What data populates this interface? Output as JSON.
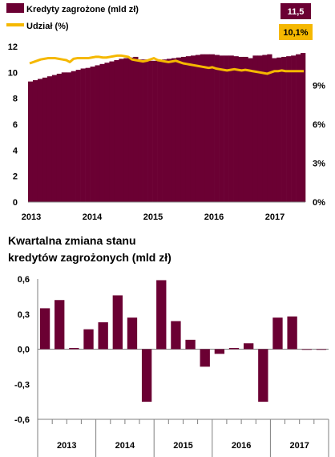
{
  "colors": {
    "bar": "#6B0033",
    "line": "#F5B800",
    "grid": "#A6A6A6",
    "badge_text": "#FFFFFF"
  },
  "chart_data": [
    {
      "type": "bar+line",
      "legend": [
        {
          "label": "Kredyty zagrożone (mld zł)",
          "badge": "11,5"
        },
        {
          "label": "Udział (%)",
          "badge": "10,1%"
        }
      ],
      "legend_placement": "top",
      "x_tick_labels": [
        "2013",
        "2014",
        "2015",
        "2016",
        "2017"
      ],
      "y_left": {
        "range": [
          0,
          12
        ],
        "tick_labels": [
          "0",
          "2",
          "4",
          "6",
          "8",
          "10",
          "12"
        ]
      },
      "y_right": {
        "range": [
          0,
          12
        ],
        "tick_labels": [
          "0%",
          "3%",
          "6%",
          "9%"
        ]
      },
      "grid": false,
      "series": [
        {
          "name": "Kredyty zagrożone (mld zł)",
          "type": "bar",
          "axis": "left",
          "values": [
            9.3,
            9.4,
            9.5,
            9.6,
            9.7,
            9.8,
            9.9,
            10.0,
            10.0,
            10.1,
            10.2,
            10.3,
            10.35,
            10.45,
            10.55,
            10.65,
            10.75,
            10.85,
            10.95,
            11.05,
            11.1,
            11.15,
            11.2,
            11.0,
            11.0,
            10.9,
            10.9,
            10.95,
            11.0,
            11.05,
            11.1,
            11.15,
            11.2,
            11.25,
            11.3,
            11.35,
            11.4,
            11.4,
            11.4,
            11.35,
            11.3,
            11.3,
            11.3,
            11.25,
            11.2,
            11.2,
            11.1,
            11.3,
            11.3,
            11.35,
            11.4,
            11.1,
            11.15,
            11.2,
            11.25,
            11.3,
            11.4,
            11.5
          ]
        },
        {
          "name": "Udział (%)",
          "type": "line",
          "axis": "right",
          "values": [
            10.7,
            10.8,
            10.9,
            11.0,
            11.05,
            11.1,
            11.1,
            11.1,
            11.05,
            11.0,
            10.95,
            10.8,
            11.05,
            11.1,
            11.1,
            11.1,
            11.1,
            11.15,
            11.2,
            11.2,
            11.15,
            11.15,
            11.2,
            11.25,
            11.3,
            11.3,
            11.25,
            11.2,
            11.0,
            10.95,
            10.9,
            10.85,
            10.9,
            11.0,
            11.1,
            10.95,
            10.9,
            10.85,
            10.8,
            10.85,
            10.9,
            10.8,
            10.7,
            10.65,
            10.6,
            10.55,
            10.5,
            10.45,
            10.4,
            10.35,
            10.4,
            10.3,
            10.25,
            10.2,
            10.15,
            10.2,
            10.25,
            10.2,
            10.15,
            10.2,
            10.15,
            10.1,
            10.05,
            10.0,
            9.95,
            9.9,
            10.0,
            10.1,
            10.1,
            10.15,
            10.1,
            10.1,
            10.1,
            10.1,
            10.1,
            10.1
          ]
        }
      ]
    },
    {
      "type": "bar",
      "title_lines": [
        "Kwartalna zmiana stanu",
        "kredytów zagrożonych (mld zł)"
      ],
      "y_range": [
        -0.6,
        0.6
      ],
      "y_tick_labels": [
        "0,6",
        "0,3",
        "0,0",
        "-0,3",
        "-0,6"
      ],
      "x_tick_labels": [
        "2013",
        "2014",
        "2015",
        "2016",
        "2017"
      ],
      "grid": false,
      "values": [
        0.35,
        0.42,
        0.01,
        0.17,
        0.23,
        0.46,
        0.27,
        -0.45,
        0.59,
        0.24,
        0.08,
        -0.15,
        -0.04,
        0.01,
        0.05,
        -0.45,
        0.27,
        0.28,
        0.0,
        0.0
      ]
    }
  ]
}
